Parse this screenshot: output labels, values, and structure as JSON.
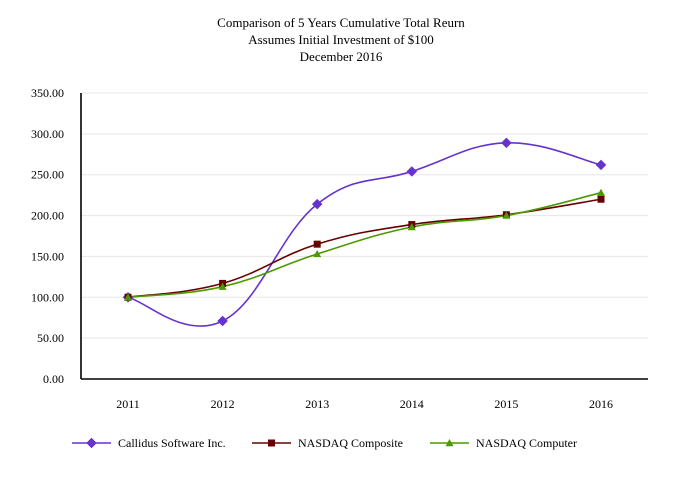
{
  "chart_data": {
    "type": "line",
    "title_lines": [
      "Comparison of 5 Years Cumulative Total Reurn",
      "Assumes Initial Investment of $100",
      "December 2016"
    ],
    "categories": [
      "2011",
      "2012",
      "2013",
      "2014",
      "2015",
      "2016"
    ],
    "yticks": [
      "0.00",
      "50.00",
      "100.00",
      "150.00",
      "200.00",
      "250.00",
      "300.00",
      "350.00"
    ],
    "ylim": [
      0,
      350
    ],
    "grid": true,
    "legend_position": "bottom",
    "series": [
      {
        "name": "Callidus Software Inc.",
        "color": "#6633cc",
        "marker": "diamond",
        "values": [
          100,
          71,
          214,
          254,
          289,
          262
        ]
      },
      {
        "name": "NASDAQ Composite",
        "color": "#660000",
        "marker": "square",
        "values": [
          100,
          117,
          165,
          189,
          201,
          220
        ]
      },
      {
        "name": "NASDAQ Computer",
        "color": "#4d9900",
        "marker": "triangle",
        "values": [
          100,
          113,
          153,
          186,
          200,
          228
        ]
      }
    ]
  }
}
